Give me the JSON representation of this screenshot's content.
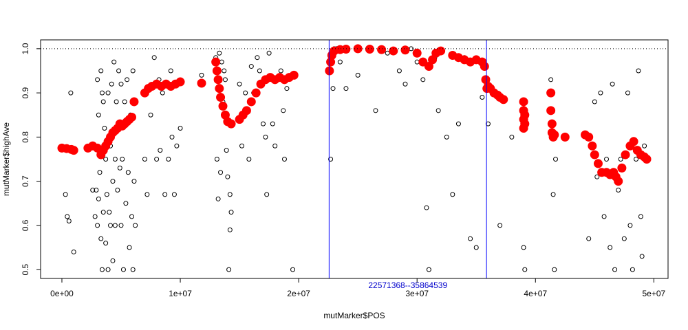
{
  "chart_data": {
    "type": "scatter",
    "title": "",
    "xlabel": "mutMarker$POS",
    "ylabel": "mutMarker$highAve",
    "xlim": [
      -1800000,
      51200000
    ],
    "ylim": [
      0.48,
      1.02
    ],
    "x_ticks": [
      {
        "value": 0,
        "label": "0e+00"
      },
      {
        "value": 10000000,
        "label": "1e+07"
      },
      {
        "value": 20000000,
        "label": "2e+07"
      },
      {
        "value": 30000000,
        "label": "3e+07"
      },
      {
        "value": 40000000,
        "label": "4e+07"
      },
      {
        "value": 50000000,
        "label": "5e+07"
      }
    ],
    "y_ticks": [
      {
        "value": 0.5,
        "label": "0.5"
      },
      {
        "value": 0.6,
        "label": "0.6"
      },
      {
        "value": 0.7,
        "label": "0.7"
      },
      {
        "value": 0.8,
        "label": "0.8"
      },
      {
        "value": 0.9,
        "label": "0.9"
      },
      {
        "value": 1.0,
        "label": "1.0"
      }
    ],
    "reference_line_y": 1.0,
    "region": {
      "start": 22571368,
      "end": 35864539,
      "label": "22571368--35864539",
      "color": "#0000ff"
    },
    "raw_color": "#000000",
    "smooth_color": "#ff0000",
    "raw_series": {
      "x": [
        300000,
        450000,
        600000,
        750000,
        1000000,
        2600000,
        2800000,
        2900000,
        3000000,
        3000000,
        3100000,
        3100000,
        3200000,
        3300000,
        3300000,
        3400000,
        3400000,
        3500000,
        3500000,
        3600000,
        3700000,
        3700000,
        3800000,
        3900000,
        3900000,
        4000000,
        4100000,
        4100000,
        4200000,
        4300000,
        4300000,
        4400000,
        4500000,
        4500000,
        4600000,
        4700000,
        4800000,
        4900000,
        5000000,
        5000000,
        5100000,
        5200000,
        5300000,
        5400000,
        5500000,
        5600000,
        5700000,
        5800000,
        5900000,
        6000000,
        6000000,
        6100000,
        6200000,
        7000000,
        7200000,
        7500000,
        7800000,
        8000000,
        8200000,
        8300000,
        8500000,
        8700000,
        9000000,
        9200000,
        9300000,
        9500000,
        9700000,
        10000000,
        11800000,
        13000000,
        13100000,
        13200000,
        13300000,
        13400000,
        13500000,
        13600000,
        13700000,
        13800000,
        13900000,
        14000000,
        14100000,
        14200000,
        14200000,
        14300000,
        15000000,
        15200000,
        15500000,
        15800000,
        16000000,
        16200000,
        16500000,
        16700000,
        17000000,
        17200000,
        17300000,
        17500000,
        17800000,
        18000000,
        18200000,
        18500000,
        18700000,
        18800000,
        19000000,
        19500000,
        22700000,
        22800000,
        22900000,
        23000000,
        23200000,
        23500000,
        24000000,
        25000000,
        26500000,
        27500000,
        28500000,
        29000000,
        29500000,
        30000000,
        30500000,
        30800000,
        31000000,
        31500000,
        31800000,
        32500000,
        33000000,
        33500000,
        34000000,
        34500000,
        35000000,
        35500000,
        36000000,
        37000000,
        38000000,
        39000000,
        39100000,
        41300000,
        41500000,
        41600000,
        41700000,
        44500000,
        45000000,
        45200000,
        45500000,
        45800000,
        46000000,
        46300000,
        46500000,
        46700000,
        47000000,
        47200000,
        47500000,
        47800000,
        48000000,
        48200000,
        48500000,
        48700000,
        48900000,
        49000000,
        49200000
      ],
      "y": [
        0.67,
        0.62,
        0.61,
        0.9,
        0.54,
        0.68,
        0.62,
        0.68,
        0.6,
        0.93,
        0.85,
        0.66,
        0.72,
        0.95,
        0.57,
        0.9,
        0.5,
        0.88,
        0.63,
        0.82,
        0.75,
        0.56,
        0.67,
        0.9,
        0.5,
        0.63,
        0.78,
        0.6,
        0.92,
        0.7,
        0.52,
        0.97,
        0.75,
        0.6,
        0.88,
        0.68,
        0.95,
        0.73,
        0.6,
        0.92,
        0.75,
        0.5,
        0.88,
        0.65,
        0.93,
        0.72,
        0.55,
        0.85,
        0.62,
        0.95,
        0.5,
        0.7,
        0.6,
        0.75,
        0.67,
        0.85,
        0.98,
        0.75,
        0.93,
        0.77,
        0.9,
        0.67,
        0.75,
        0.95,
        0.8,
        0.67,
        0.78,
        0.82,
        0.94,
        0.98,
        0.75,
        0.66,
        0.99,
        0.72,
        0.97,
        0.88,
        0.95,
        0.93,
        0.77,
        0.71,
        0.5,
        0.59,
        0.67,
        0.63,
        0.92,
        0.78,
        0.9,
        0.75,
        0.96,
        0.9,
        0.98,
        0.95,
        0.83,
        0.8,
        0.67,
        0.99,
        0.83,
        0.78,
        0.93,
        0.95,
        0.86,
        0.75,
        0.91,
        0.5,
        0.75,
        0.99,
        0.91,
        1.0,
        1.0,
        0.97,
        0.91,
        0.94,
        0.86,
        0.99,
        0.95,
        0.92,
        1.0,
        0.97,
        0.93,
        0.64,
        0.5,
        0.98,
        0.86,
        0.8,
        0.67,
        0.83,
        0.98,
        0.57,
        0.55,
        0.89,
        0.83,
        0.6,
        0.8,
        0.55,
        0.5,
        0.93,
        0.67,
        0.5,
        0.75,
        0.57,
        0.88,
        0.71,
        0.9,
        0.62,
        0.75,
        0.55,
        0.92,
        0.5,
        0.68,
        0.75,
        0.57,
        0.9,
        0.6,
        0.5,
        0.75,
        0.95,
        0.62,
        0.53,
        0.78
      ]
    },
    "smooth_series": {
      "x": [
        0,
        400000,
        800000,
        1000000,
        2200000,
        2600000,
        3000000,
        3300000,
        3500000,
        3700000,
        3900000,
        4100000,
        4300000,
        4500000,
        4700000,
        4900000,
        5100000,
        5300000,
        5500000,
        5700000,
        5900000,
        6100000,
        7000000,
        7300000,
        7600000,
        8000000,
        8400000,
        8800000,
        9200000,
        9600000,
        10000000,
        11800000,
        13000000,
        13100000,
        13200000,
        13300000,
        13400000,
        13600000,
        13800000,
        14000000,
        14300000,
        15000000,
        15300000,
        15600000,
        16000000,
        16400000,
        16800000,
        17200000,
        17600000,
        18000000,
        18400000,
        18800000,
        19200000,
        19600000,
        22600000,
        22700000,
        22800000,
        23000000,
        23500000,
        24000000,
        25000000,
        26000000,
        27000000,
        28000000,
        29000000,
        30000000,
        30500000,
        31000000,
        31300000,
        31600000,
        32000000,
        33000000,
        33500000,
        34000000,
        34500000,
        35000000,
        35500000,
        35700000,
        35800000,
        35900000,
        36000000,
        36200000,
        36500000,
        36800000,
        37000000,
        37300000,
        39000000,
        39000000,
        39000000,
        39000000,
        39100000,
        39100000,
        41300000,
        41300000,
        41400000,
        41400000,
        41500000,
        41600000,
        42500000,
        44200000,
        44500000,
        44800000,
        45000000,
        45300000,
        45600000,
        46000000,
        46300000,
        46600000,
        46800000,
        47000000,
        47300000,
        47600000,
        48000000,
        48300000,
        48600000,
        48900000,
        49200000,
        49400000
      ],
      "y": [
        0.775,
        0.774,
        0.772,
        0.77,
        0.775,
        0.78,
        0.775,
        0.76,
        0.77,
        0.78,
        0.79,
        0.8,
        0.81,
        0.815,
        0.82,
        0.83,
        0.825,
        0.83,
        0.835,
        0.84,
        0.845,
        0.88,
        0.9,
        0.91,
        0.915,
        0.92,
        0.915,
        0.92,
        0.915,
        0.92,
        0.925,
        0.922,
        0.97,
        0.95,
        0.93,
        0.91,
        0.89,
        0.87,
        0.85,
        0.835,
        0.83,
        0.84,
        0.85,
        0.86,
        0.88,
        0.9,
        0.92,
        0.93,
        0.935,
        0.93,
        0.935,
        0.93,
        0.935,
        0.94,
        0.95,
        0.97,
        0.985,
        0.995,
        0.998,
        0.999,
        1.0,
        0.999,
        0.998,
        0.995,
        0.997,
        0.99,
        0.97,
        0.96,
        0.975,
        0.99,
        0.995,
        0.985,
        0.98,
        0.975,
        0.97,
        0.975,
        0.97,
        0.96,
        0.93,
        0.91,
        0.915,
        0.91,
        0.9,
        0.895,
        0.89,
        0.885,
        0.88,
        0.86,
        0.84,
        0.82,
        0.85,
        0.83,
        0.9,
        0.86,
        0.83,
        0.81,
        0.8,
        0.805,
        0.8,
        0.805,
        0.8,
        0.78,
        0.76,
        0.74,
        0.72,
        0.72,
        0.715,
        0.72,
        0.71,
        0.7,
        0.73,
        0.76,
        0.78,
        0.79,
        0.77,
        0.76,
        0.755,
        0.75
      ]
    }
  }
}
